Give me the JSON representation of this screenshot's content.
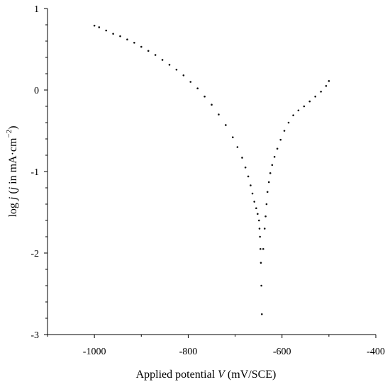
{
  "chart_data": {
    "type": "scatter",
    "title": "",
    "xlabel": "Applied potential V (mV/SCE)",
    "xlabel_parts": {
      "prefix": "Applied potential ",
      "var": "V",
      "suffix": " (mV/SCE)"
    },
    "ylabel": "log j (j in mA·cm−2)",
    "ylabel_parts": {
      "prefix": "log ",
      "var1": "j",
      "mid1": " (",
      "var2": "j",
      "mid2": " in mA·cm",
      "sup": "−2",
      "end": ")"
    },
    "xlim": [
      -1100,
      -400
    ],
    "ylim": [
      -3,
      1
    ],
    "x_ticks": [
      -1000,
      -800,
      -600,
      -400
    ],
    "x_tick_labels": [
      "-1000",
      "-800",
      "-600",
      "-400"
    ],
    "y_ticks": [
      -3,
      -2,
      -1,
      0,
      1
    ],
    "y_tick_labels": [
      "-3",
      "-2",
      "-1",
      "0",
      "1"
    ],
    "grid": false,
    "legend": "none",
    "marker_color": "#111111",
    "series": [
      {
        "name": "",
        "x": [
          -1000,
          -990,
          -975,
          -960,
          -945,
          -930,
          -915,
          -900,
          -885,
          -870,
          -855,
          -840,
          -825,
          -810,
          -795,
          -780,
          -765,
          -750,
          -735,
          -720,
          -705,
          -695,
          -685,
          -678,
          -672,
          -667,
          -663,
          -659,
          -655,
          -652,
          -649,
          -648,
          -647,
          -646,
          -645,
          -644,
          -643
        ],
        "y": [
          0.79,
          0.77,
          0.73,
          0.69,
          0.66,
          0.62,
          0.58,
          0.53,
          0.48,
          0.43,
          0.37,
          0.31,
          0.25,
          0.18,
          0.1,
          0.02,
          -0.08,
          -0.18,
          -0.3,
          -0.43,
          -0.58,
          -0.7,
          -0.83,
          -0.95,
          -1.06,
          -1.17,
          -1.27,
          -1.37,
          -1.45,
          -1.52,
          -1.6,
          -1.7,
          -1.8,
          -1.95,
          -2.12,
          -2.4,
          -2.75
        ]
      },
      {
        "name": "",
        "x": [
          -640,
          -637,
          -635,
          -633,
          -631,
          -628,
          -625,
          -621,
          -616,
          -610,
          -603,
          -595,
          -586,
          -576,
          -565,
          -553,
          -541,
          -529,
          -517,
          -506,
          -500
        ],
        "y": [
          -1.95,
          -1.7,
          -1.55,
          -1.4,
          -1.25,
          -1.13,
          -1.02,
          -0.92,
          -0.82,
          -0.72,
          -0.61,
          -0.5,
          -0.4,
          -0.31,
          -0.25,
          -0.2,
          -0.14,
          -0.08,
          -0.02,
          0.05,
          0.11
        ]
      }
    ]
  }
}
